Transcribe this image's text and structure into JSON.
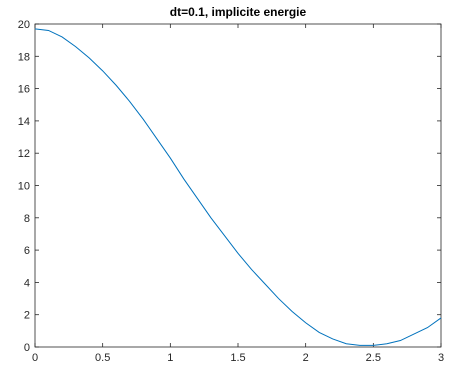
{
  "chart_data": {
    "type": "line",
    "title": "dt=0.1, implicite energie",
    "xlabel": "",
    "ylabel": "",
    "xlim": [
      0,
      3
    ],
    "ylim": [
      0,
      20
    ],
    "xticks": [
      0,
      0.5,
      1,
      1.5,
      2,
      2.5,
      3
    ],
    "xtick_labels": [
      "0",
      "0.5",
      "1",
      "1.5",
      "2",
      "2.5",
      "3"
    ],
    "yticks": [
      0,
      2,
      4,
      6,
      8,
      10,
      12,
      14,
      16,
      18,
      20
    ],
    "ytick_labels": [
      "0",
      "2",
      "4",
      "6",
      "8",
      "10",
      "12",
      "14",
      "16",
      "18",
      "20"
    ],
    "grid": false,
    "legend": "none",
    "series": [
      {
        "color": "#0072BD",
        "x": [
          0,
          0.1,
          0.2,
          0.3,
          0.4,
          0.5,
          0.6,
          0.7,
          0.8,
          0.9,
          1.0,
          1.1,
          1.2,
          1.3,
          1.4,
          1.5,
          1.6,
          1.7,
          1.8,
          1.9,
          2.0,
          2.1,
          2.2,
          2.3,
          2.4,
          2.5,
          2.6,
          2.7,
          2.8,
          2.9,
          3.0
        ],
        "y": [
          19.7,
          19.6,
          19.2,
          18.6,
          17.9,
          17.1,
          16.2,
          15.2,
          14.1,
          12.9,
          11.7,
          10.4,
          9.2,
          8.0,
          6.9,
          5.8,
          4.8,
          3.9,
          3.0,
          2.2,
          1.5,
          0.9,
          0.5,
          0.2,
          0.1,
          0.1,
          0.2,
          0.4,
          0.8,
          1.2,
          1.8
        ]
      }
    ]
  }
}
